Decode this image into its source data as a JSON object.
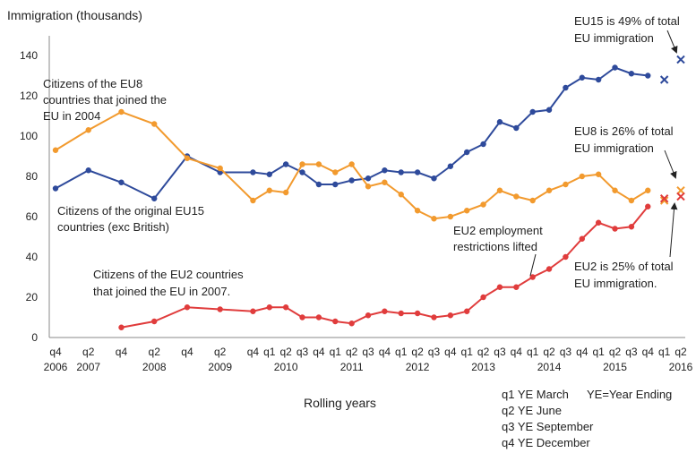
{
  "chart_data": {
    "type": "line",
    "title": "",
    "ylabel": "Immigration (thousands)",
    "xlabel": "Rolling years",
    "ylim": [
      0,
      140
    ],
    "yticks": [
      0,
      20,
      40,
      60,
      80,
      100,
      120,
      140
    ],
    "grid": false,
    "x_ticks": [
      {
        "q": "q4",
        "year": "2006"
      },
      {
        "q": "q2",
        "year": "2007"
      },
      {
        "q": "q4",
        "year": ""
      },
      {
        "q": "q2",
        "year": "2008"
      },
      {
        "q": "q4",
        "year": ""
      },
      {
        "q": "q2",
        "year": "2009"
      },
      {
        "q": "q4",
        "year": ""
      },
      {
        "q": "q1",
        "year": ""
      },
      {
        "q": "q2",
        "year": "2010"
      },
      {
        "q": "q3",
        "year": ""
      },
      {
        "q": "q4",
        "year": ""
      },
      {
        "q": "q1",
        "year": ""
      },
      {
        "q": "q2",
        "year": "2011"
      },
      {
        "q": "q3",
        "year": ""
      },
      {
        "q": "q4",
        "year": ""
      },
      {
        "q": "q1",
        "year": ""
      },
      {
        "q": "q2",
        "year": "2012"
      },
      {
        "q": "q3",
        "year": ""
      },
      {
        "q": "q4",
        "year": ""
      },
      {
        "q": "q1",
        "year": ""
      },
      {
        "q": "q2",
        "year": "2013"
      },
      {
        "q": "q3",
        "year": ""
      },
      {
        "q": "q4",
        "year": ""
      },
      {
        "q": "q1",
        "year": ""
      },
      {
        "q": "q2",
        "year": "2014"
      },
      {
        "q": "q3",
        "year": ""
      },
      {
        "q": "q4",
        "year": ""
      },
      {
        "q": "q1",
        "year": ""
      },
      {
        "q": "q2",
        "year": "2015"
      },
      {
        "q": "q3",
        "year": ""
      },
      {
        "q": "q4",
        "year": ""
      },
      {
        "q": "q1",
        "year": ""
      },
      {
        "q": "q2",
        "year": "2016"
      }
    ],
    "series": [
      {
        "key": "eu15",
        "color": "#2E4A9B",
        "points": [
          [
            0,
            74
          ],
          [
            1,
            83
          ],
          [
            2,
            77
          ],
          [
            3,
            69
          ],
          [
            4,
            90
          ],
          [
            5,
            82
          ],
          [
            6,
            82
          ],
          [
            6.5,
            81
          ],
          [
            7,
            86
          ],
          [
            7.5,
            82
          ],
          [
            8,
            76
          ],
          [
            8.5,
            76
          ],
          [
            9,
            78
          ],
          [
            9.5,
            79
          ],
          [
            10,
            83
          ],
          [
            10.5,
            82
          ],
          [
            11,
            82
          ],
          [
            11.5,
            79
          ],
          [
            12,
            85
          ],
          [
            12.5,
            92
          ],
          [
            13,
            96
          ],
          [
            13.5,
            107
          ],
          [
            14,
            104
          ],
          [
            14.5,
            112
          ],
          [
            15,
            113
          ],
          [
            15.5,
            124
          ],
          [
            16,
            129
          ],
          [
            16.5,
            128
          ],
          [
            17,
            134
          ],
          [
            17.5,
            131
          ],
          [
            18,
            130
          ]
        ],
        "estimate": [
          18.5,
          128
        ],
        "estimate_2016": [
          19,
          138
        ]
      },
      {
        "key": "eu8",
        "color": "#F29A2E",
        "points": [
          [
            0,
            93
          ],
          [
            1,
            103
          ],
          [
            2,
            112
          ],
          [
            3,
            106
          ],
          [
            4,
            89
          ],
          [
            5,
            84
          ],
          [
            6,
            68
          ],
          [
            6.5,
            73
          ],
          [
            7,
            72
          ],
          [
            7.5,
            86
          ],
          [
            8,
            86
          ],
          [
            8.5,
            82
          ],
          [
            9,
            86
          ],
          [
            9.5,
            75
          ],
          [
            10,
            77
          ],
          [
            10.5,
            71
          ],
          [
            11,
            63
          ],
          [
            11.5,
            59
          ],
          [
            12,
            60
          ],
          [
            12.5,
            63
          ],
          [
            13,
            66
          ],
          [
            13.5,
            73
          ],
          [
            14,
            70
          ],
          [
            14.5,
            68
          ],
          [
            15,
            73
          ],
          [
            15.5,
            76
          ],
          [
            16,
            80
          ],
          [
            16.5,
            81
          ],
          [
            17,
            73
          ],
          [
            17.5,
            68
          ],
          [
            18,
            73
          ]
        ],
        "estimate": [
          18.5,
          68
        ],
        "estimate_2016": [
          19,
          73
        ]
      },
      {
        "key": "eu2",
        "color": "#E03C3C",
        "points": [
          [
            2,
            5
          ],
          [
            3,
            8
          ],
          [
            4,
            15
          ],
          [
            5,
            14
          ],
          [
            6,
            13
          ],
          [
            6.5,
            15
          ],
          [
            7,
            15
          ],
          [
            7.5,
            10
          ],
          [
            8,
            10
          ],
          [
            8.5,
            8
          ],
          [
            9,
            7
          ],
          [
            9.5,
            11
          ],
          [
            10,
            13
          ],
          [
            10.5,
            12
          ],
          [
            11,
            12
          ],
          [
            11.5,
            10
          ],
          [
            12,
            11
          ],
          [
            12.5,
            13
          ],
          [
            13,
            20
          ],
          [
            13.5,
            25
          ],
          [
            14,
            25
          ],
          [
            14.5,
            30
          ],
          [
            15,
            34
          ],
          [
            15.5,
            40
          ],
          [
            16,
            49
          ],
          [
            16.5,
            57
          ],
          [
            17,
            54
          ],
          [
            17.5,
            55
          ],
          [
            18,
            65
          ]
        ],
        "estimate": [
          18.5,
          69
        ],
        "estimate_2016": [
          19,
          70
        ]
      }
    ],
    "annotations": {
      "eu8_label": [
        "Citizens of the EU8",
        "countries that joined the",
        "EU in 2004"
      ],
      "eu15_label": [
        "Citizens of the original EU15",
        "countries (exc British)"
      ],
      "eu2_label": [
        "Citizens of the EU2 countries",
        "that joined the EU in 2007."
      ],
      "eu2_restrictions": [
        "EU2 employment",
        "restrictions lifted"
      ],
      "eu15_share": [
        "EU15 is 49% of total",
        "EU immigration"
      ],
      "eu8_share": [
        "EU8 is 26% of total",
        "EU immigration"
      ],
      "eu2_share": [
        "EU2 is 25% of total",
        "EU immigration."
      ]
    },
    "legend_notes": {
      "q1": "q1 YE March",
      "ye": "YE=Year Ending",
      "q2": "q2 YE June",
      "q3": "q3 YE September",
      "q4": "q4 YE December"
    }
  }
}
